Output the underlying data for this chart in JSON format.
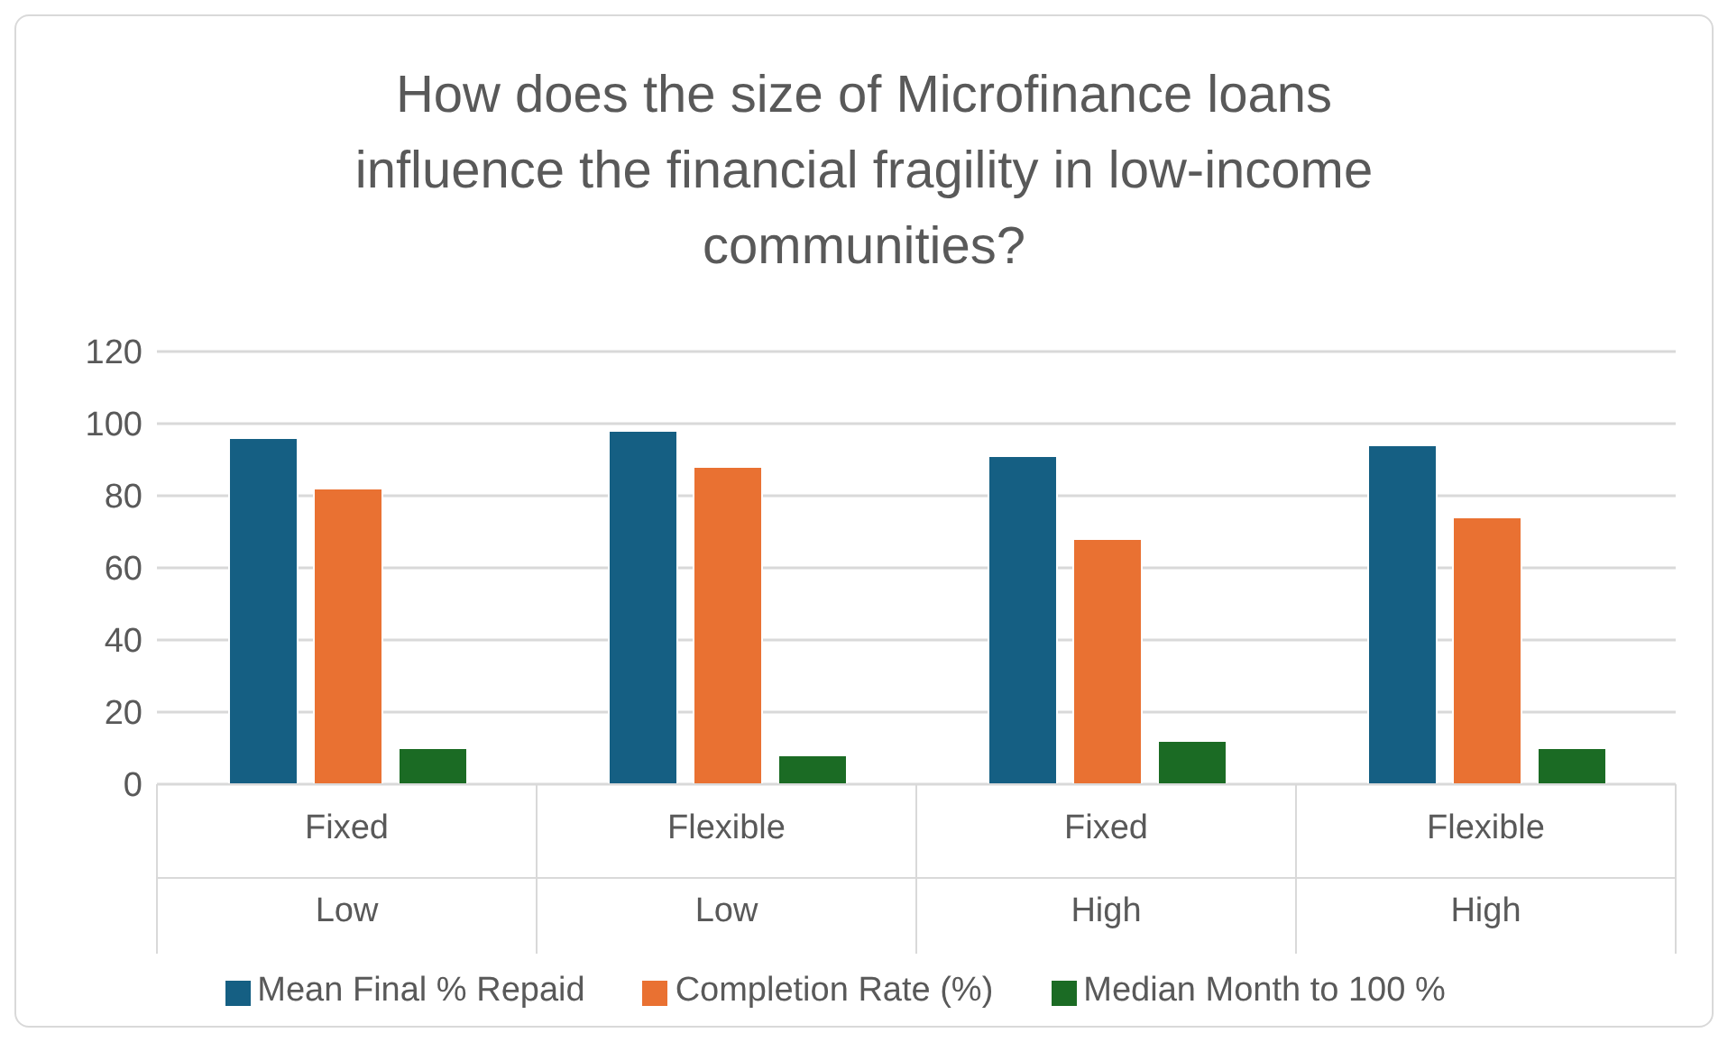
{
  "chart_data": {
    "type": "bar",
    "title": "How does the size of Microfinance loans influence the financial fragility in low-income communities?",
    "categories": [
      "Fixed\nLow",
      "Flexible\nLow",
      "Fixed\nHigh",
      "Flexible\nHigh"
    ],
    "series": [
      {
        "name": "Mean Final % Repaid",
        "color": "#155f83",
        "values": [
          96,
          98,
          91,
          94
        ]
      },
      {
        "name": "Completion Rate (%)",
        "color": "#e97132",
        "values": [
          82,
          88,
          68,
          74
        ]
      },
      {
        "name": "Median Month to 100 %",
        "color": "#1b6b24",
        "values": [
          10,
          8,
          12,
          10
        ]
      }
    ],
    "ylim": [
      0,
      120
    ],
    "yticks": [
      0,
      20,
      40,
      60,
      80,
      100,
      120
    ],
    "grid": "y",
    "legend": "bottom"
  }
}
